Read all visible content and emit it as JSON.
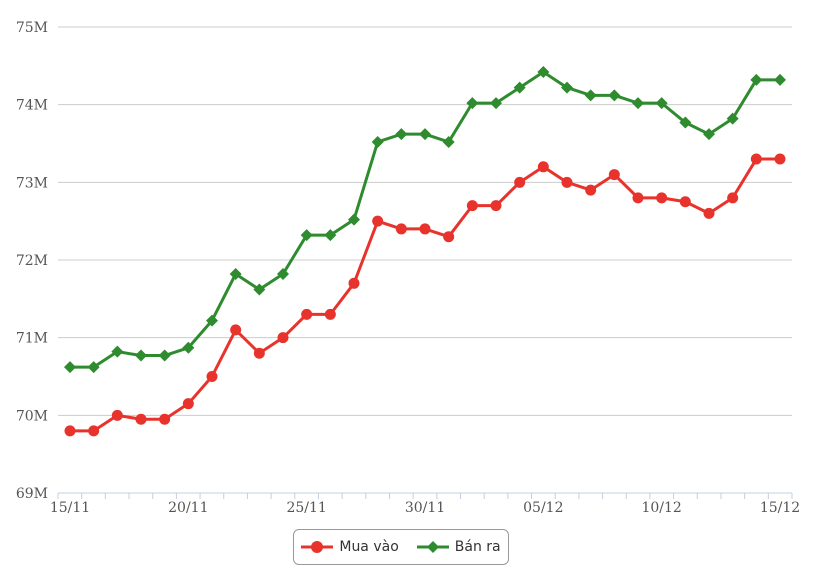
{
  "chart_data": {
    "type": "line",
    "y_tick_labels": [
      "69M",
      "70M",
      "71M",
      "72M",
      "73M",
      "74M",
      "75M"
    ],
    "x_tick_labels": [
      "15/11",
      "20/11",
      "25/11",
      "30/11",
      "05/12",
      "10/12",
      "15/12"
    ],
    "ylim": [
      69,
      75
    ],
    "y_unit": "M",
    "grid": true,
    "legend_position": "bottom-center",
    "x": [
      "15/11",
      "16/11",
      "17/11",
      "18/11",
      "19/11",
      "20/11",
      "21/11",
      "22/11",
      "23/11",
      "24/11",
      "25/11",
      "26/11",
      "27/11",
      "28/11",
      "29/11",
      "30/11",
      "01/12",
      "02/12",
      "03/12",
      "04/12",
      "05/12",
      "06/12",
      "07/12",
      "08/12",
      "09/12",
      "10/12",
      "11/12",
      "12/12",
      "13/12",
      "14/12",
      "15/12"
    ],
    "series": [
      {
        "name": "Mua vào",
        "color": "#e8332d",
        "marker": "circle",
        "values": [
          69.8,
          69.8,
          70.0,
          69.95,
          69.95,
          70.15,
          70.5,
          71.1,
          70.8,
          71.0,
          71.3,
          71.3,
          71.7,
          72.5,
          72.4,
          72.4,
          72.3,
          72.7,
          72.7,
          73.0,
          73.2,
          73.0,
          72.9,
          73.1,
          72.8,
          72.8,
          72.75,
          72.6,
          72.8,
          73.3,
          73.3
        ]
      },
      {
        "name": "Bán ra",
        "color": "#2e8b2e",
        "marker": "diamond",
        "values": [
          70.62,
          70.62,
          70.82,
          70.77,
          70.77,
          70.87,
          71.22,
          71.82,
          71.62,
          71.82,
          72.32,
          72.32,
          72.52,
          73.52,
          73.62,
          73.62,
          73.52,
          74.02,
          74.02,
          74.22,
          74.42,
          74.22,
          74.12,
          74.12,
          74.02,
          74.02,
          73.77,
          73.62,
          73.82,
          74.32,
          74.32
        ]
      }
    ]
  }
}
